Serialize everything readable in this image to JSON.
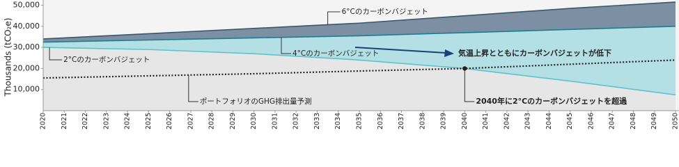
{
  "chart_data": {
    "type": "area",
    "y_label": "Thousands (tCO₂e)",
    "x": [
      2020,
      2025,
      2030,
      2035,
      2040,
      2045,
      2050
    ],
    "xlim": [
      2020,
      2050
    ],
    "xticks": [
      2020,
      2021,
      2022,
      2023,
      2024,
      2025,
      2026,
      2027,
      2028,
      2029,
      2030,
      2031,
      2032,
      2033,
      2034,
      2035,
      2036,
      2037,
      2038,
      2039,
      2040,
      2041,
      2042,
      2043,
      2044,
      2045,
      2046,
      2047,
      2048,
      2049,
      2050
    ],
    "ylim": [
      0,
      50000
    ],
    "yticks": [
      {
        "value": 10000,
        "label": "10,000"
      },
      {
        "value": 20000,
        "label": "20,000"
      },
      {
        "value": 30000,
        "label": "30,000"
      },
      {
        "value": 40000,
        "label": "40,000"
      },
      {
        "value": 50000,
        "label": "50,000"
      }
    ],
    "series": [
      {
        "name": "6°Cのカーボンバジェット",
        "color": "#3b5670",
        "fill": "#7d8fa3",
        "values": [
          34000,
          36500,
          39000,
          41500,
          45000,
          48500,
          51500
        ]
      },
      {
        "name": "4°Cのカーボンバジェット",
        "color": "#1c7d90",
        "fill": "#b3dfe5",
        "values": [
          32500,
          33500,
          34500,
          35500,
          37000,
          38500,
          40000
        ]
      },
      {
        "name": "2°Cのカーボンバジェット",
        "color": "#5cc3cf",
        "fill": "#e6e6e6",
        "values": [
          30000,
          29000,
          27000,
          24000,
          20000,
          14000,
          7500
        ]
      },
      {
        "name": "ポートフォリオのGHG排出量予測",
        "color": "#222222",
        "dotted": true,
        "values": [
          15500,
          16500,
          17500,
          18800,
          20000,
          22000,
          24000
        ]
      }
    ],
    "annotations": [
      "気温上昇とともにカーボンバジェットが低下",
      "2040年に2°Cのカーボンバジェットを超過"
    ]
  }
}
